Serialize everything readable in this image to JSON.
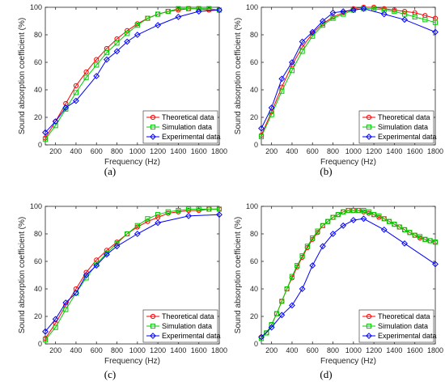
{
  "chart_data": [
    {
      "type": "line",
      "panel_label": "(a)",
      "xlabel": "Frequency (Hz)",
      "ylabel": "Sound absorption coefficient (%)",
      "xlim": [
        100,
        1800
      ],
      "ylim": [
        0,
        100
      ],
      "xticks": [
        200,
        400,
        600,
        800,
        1000,
        1200,
        1400,
        1600,
        1800
      ],
      "yticks": [
        0,
        20,
        40,
        60,
        80,
        100
      ],
      "legend_position": "bottom-right",
      "series": [
        {
          "name": "Theoretical data",
          "color": "#ff0000",
          "marker": "circle",
          "x": [
            100,
            200,
            300,
            400,
            500,
            600,
            700,
            800,
            900,
            1000,
            1100,
            1200,
            1300,
            1400,
            1500,
            1600,
            1700,
            1800
          ],
          "y": [
            5,
            17,
            30,
            43,
            53,
            62,
            70,
            77,
            83,
            88,
            92,
            95,
            97,
            98,
            99,
            99,
            98,
            98
          ]
        },
        {
          "name": "Simulation data",
          "color": "#00cc00",
          "marker": "square",
          "x": [
            100,
            200,
            300,
            400,
            500,
            600,
            700,
            800,
            900,
            1000,
            1100,
            1200,
            1300,
            1400,
            1500,
            1600,
            1700,
            1800
          ],
          "y": [
            4,
            14,
            26,
            38,
            49,
            58,
            67,
            74,
            81,
            87,
            92,
            95,
            97,
            99,
            99,
            99,
            99,
            98
          ]
        },
        {
          "name": "Experimental data",
          "color": "#0000ff",
          "marker": "diamond",
          "x": [
            100,
            200,
            300,
            400,
            600,
            700,
            800,
            900,
            1000,
            1200,
            1400,
            1600,
            1800
          ],
          "y": [
            9,
            17,
            27,
            32,
            50,
            62,
            68,
            75,
            80,
            87,
            93,
            97,
            98
          ]
        }
      ]
    },
    {
      "type": "line",
      "panel_label": "(b)",
      "xlabel": "Frequency (Hz)",
      "ylabel": "Sound absorption coefficient (%)",
      "xlim": [
        100,
        1800
      ],
      "ylim": [
        0,
        100
      ],
      "xticks": [
        200,
        400,
        600,
        800,
        1000,
        1200,
        1400,
        1600,
        1800
      ],
      "yticks": [
        0,
        20,
        40,
        60,
        80,
        100
      ],
      "legend_position": "bottom-right",
      "series": [
        {
          "name": "Theoretical data",
          "color": "#ff0000",
          "marker": "circle",
          "x": [
            100,
            200,
            300,
            400,
            500,
            600,
            700,
            800,
            900,
            1000,
            1100,
            1200,
            1300,
            1400,
            1500,
            1600,
            1700,
            1800
          ],
          "y": [
            7,
            24,
            42,
            58,
            71,
            81,
            88,
            93,
            96,
            99,
            100,
            100,
            99,
            98,
            97,
            96,
            94,
            92
          ]
        },
        {
          "name": "Simulation data",
          "color": "#00cc00",
          "marker": "square",
          "x": [
            100,
            200,
            300,
            400,
            500,
            600,
            700,
            800,
            900,
            1000,
            1100,
            1200,
            1300,
            1400,
            1500,
            1600,
            1700,
            1800
          ],
          "y": [
            6,
            22,
            39,
            54,
            68,
            79,
            87,
            92,
            95,
            98,
            99,
            99,
            98,
            97,
            95,
            93,
            91,
            89
          ]
        },
        {
          "name": "Experimental data",
          "color": "#0000ff",
          "marker": "diamond",
          "x": [
            100,
            200,
            300,
            400,
            500,
            600,
            700,
            800,
            900,
            1000,
            1100,
            1300,
            1500,
            1800
          ],
          "y": [
            12,
            27,
            48,
            60,
            75,
            82,
            90,
            96,
            97,
            98,
            99,
            95,
            91,
            82
          ]
        }
      ]
    },
    {
      "type": "line",
      "panel_label": "(c)",
      "xlabel": "Frequency (Hz)",
      "ylabel": "Sound absorption coefficient (%)",
      "xlim": [
        100,
        1800
      ],
      "ylim": [
        0,
        100
      ],
      "xticks": [
        200,
        400,
        600,
        800,
        1000,
        1200,
        1400,
        1600,
        1800
      ],
      "yticks": [
        0,
        20,
        40,
        60,
        80,
        100
      ],
      "legend_position": "bottom-right",
      "series": [
        {
          "name": "Theoretical data",
          "color": "#ff0000",
          "marker": "circle",
          "x": [
            100,
            200,
            300,
            400,
            500,
            600,
            700,
            800,
            900,
            1000,
            1100,
            1200,
            1300,
            1400,
            1500,
            1600,
            1700,
            1800
          ],
          "y": [
            4,
            15,
            28,
            40,
            52,
            61,
            68,
            74,
            80,
            85,
            89,
            92,
            95,
            96,
            97,
            97,
            98,
            98
          ]
        },
        {
          "name": "Simulation data",
          "color": "#00cc00",
          "marker": "square",
          "x": [
            100,
            200,
            300,
            400,
            500,
            600,
            700,
            800,
            900,
            1000,
            1100,
            1200,
            1300,
            1400,
            1500,
            1600,
            1700,
            1800
          ],
          "y": [
            3,
            12,
            25,
            37,
            48,
            58,
            66,
            73,
            80,
            86,
            91,
            94,
            96,
            97,
            98,
            98,
            98,
            98
          ]
        },
        {
          "name": "Experimental data",
          "color": "#0000ff",
          "marker": "diamond",
          "x": [
            100,
            200,
            300,
            400,
            500,
            600,
            700,
            800,
            1000,
            1200,
            1500,
            1800
          ],
          "y": [
            9,
            18,
            30,
            37,
            50,
            57,
            65,
            71,
            80,
            88,
            93,
            94
          ]
        }
      ]
    },
    {
      "type": "line",
      "panel_label": "(d)",
      "xlabel": "Frequency (Hz)",
      "ylabel": "Sound absorption coefficient (%)",
      "xlim": [
        100,
        1800
      ],
      "ylim": [
        0,
        100
      ],
      "xticks": [
        200,
        400,
        600,
        800,
        1000,
        1200,
        1400,
        1600,
        1800
      ],
      "yticks": [
        0,
        20,
        40,
        60,
        80,
        100
      ],
      "legend_position": "bottom-right",
      "series": [
        {
          "name": "Theoretical data",
          "color": "#ff0000",
          "marker": "circle",
          "x": [
            100,
            150,
            200,
            250,
            300,
            350,
            400,
            450,
            500,
            550,
            600,
            650,
            700,
            750,
            800,
            850,
            900,
            950,
            1000,
            1050,
            1100,
            1150,
            1200,
            1250,
            1300,
            1350,
            1400,
            1450,
            1500,
            1550,
            1600,
            1650,
            1700,
            1750,
            1800
          ],
          "y": [
            5,
            8,
            14,
            22,
            31,
            40,
            48,
            56,
            63,
            70,
            76,
            81,
            86,
            89,
            92,
            94,
            96,
            97,
            97,
            97,
            96,
            95,
            94,
            92,
            91,
            89,
            87,
            85,
            83,
            81,
            79,
            77,
            76,
            75,
            74
          ]
        },
        {
          "name": "Simulation data",
          "color": "#00cc00",
          "marker": "square",
          "x": [
            100,
            150,
            200,
            250,
            300,
            350,
            400,
            450,
            500,
            550,
            600,
            650,
            700,
            750,
            800,
            850,
            900,
            950,
            1000,
            1050,
            1100,
            1150,
            1200,
            1250,
            1300,
            1350,
            1400,
            1450,
            1500,
            1550,
            1600,
            1650,
            1700,
            1750,
            1800
          ],
          "y": [
            4,
            8,
            14,
            22,
            31,
            40,
            49,
            57,
            64,
            71,
            77,
            82,
            86,
            89,
            92,
            94,
            96,
            97,
            97,
            97,
            97,
            96,
            94,
            93,
            91,
            89,
            87,
            85,
            83,
            81,
            79,
            78,
            76,
            75,
            74
          ]
        },
        {
          "name": "Experimental data",
          "color": "#0000ff",
          "marker": "diamond",
          "x": [
            100,
            200,
            300,
            400,
            500,
            600,
            700,
            800,
            900,
            1000,
            1100,
            1300,
            1500,
            1800
          ],
          "y": [
            5,
            12,
            21,
            28,
            40,
            57,
            71,
            80,
            86,
            90,
            91,
            83,
            73,
            58
          ]
        }
      ]
    }
  ]
}
